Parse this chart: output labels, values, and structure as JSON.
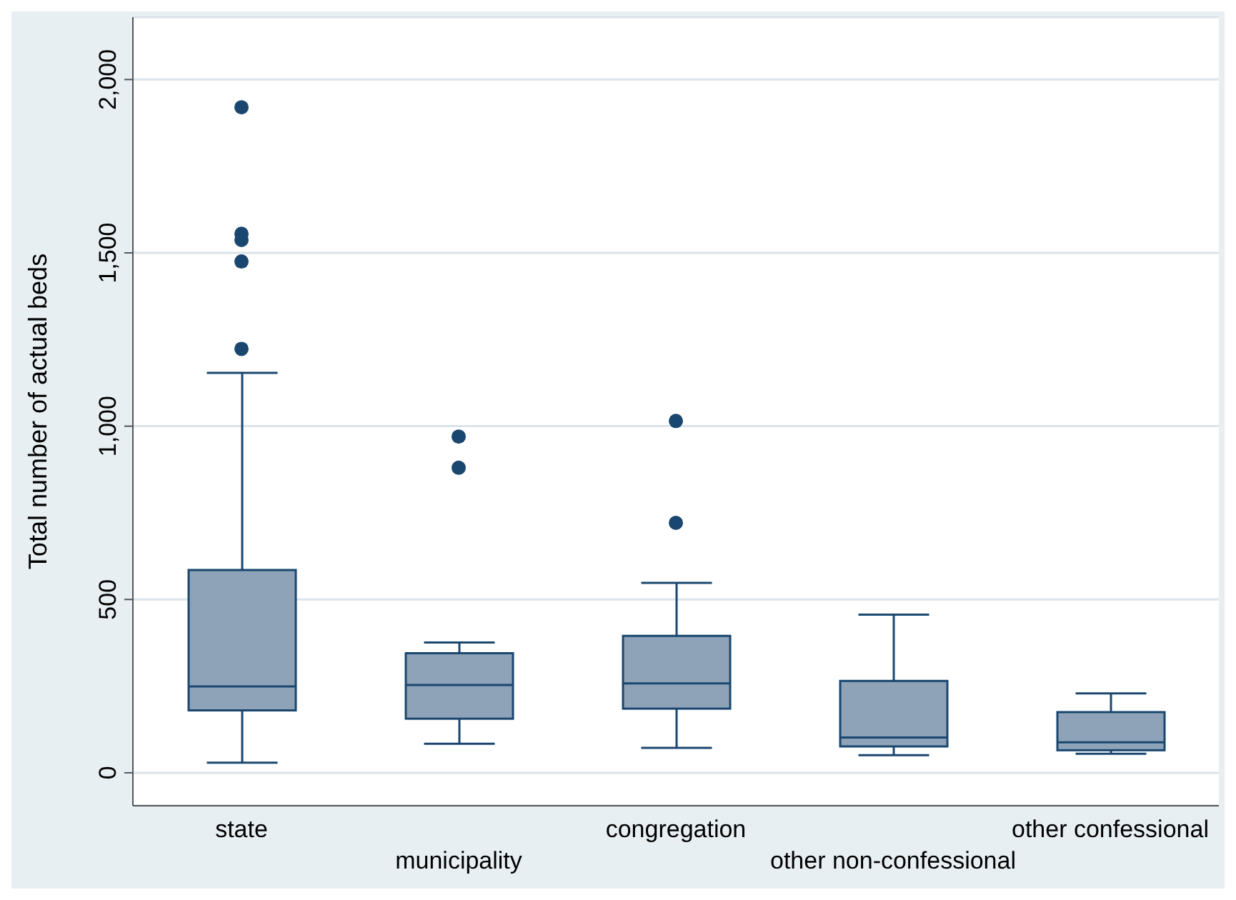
{
  "chart_data": {
    "type": "box",
    "ylabel": "Total number of actual beds",
    "categories": [
      "state",
      "municipality",
      "congregation",
      "other non-confessional",
      "other confessional"
    ],
    "boxes": [
      {
        "low": 29,
        "q1": 180,
        "median": 249,
        "q3": 585,
        "high": 1154,
        "outliers": [
          1223,
          1475,
          1537,
          1555,
          1920
        ]
      },
      {
        "low": 84,
        "q1": 156,
        "median": 253,
        "q3": 345,
        "high": 376,
        "outliers": [
          880,
          970
        ]
      },
      {
        "low": 72,
        "q1": 185,
        "median": 258,
        "q3": 395,
        "high": 548,
        "outliers": [
          721,
          1015
        ]
      },
      {
        "low": 51,
        "q1": 76,
        "median": 102,
        "q3": 265,
        "high": 456
      },
      {
        "low": 55,
        "q1": 65,
        "median": 88,
        "q3": 175,
        "high": 229
      }
    ],
    "color": "#8ea3b8",
    "ylim": [
      -95,
      2180
    ],
    "yticks": [
      0,
      500,
      {
        "value": 1000,
        "label": "1,000"
      },
      {
        "value": 1500,
        "label": "1,500"
      },
      {
        "value": 2000,
        "label": "2,000"
      }
    ],
    "grid": "y"
  }
}
